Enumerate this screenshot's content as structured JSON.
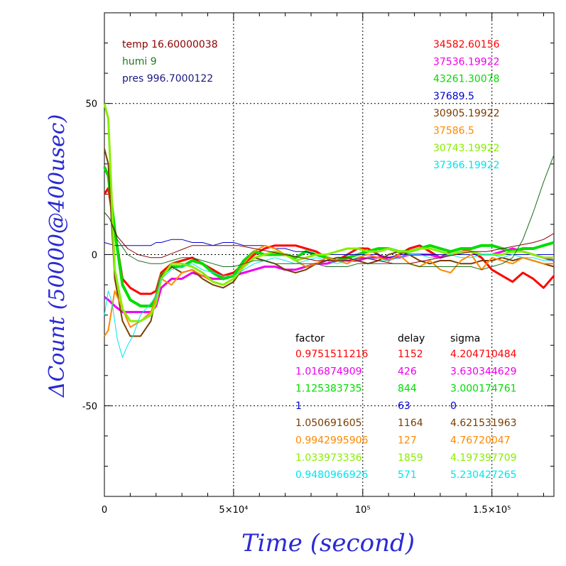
{
  "chart_data": {
    "type": "line",
    "xlabel": "Time (second)",
    "ylabel": "ΔCount (50000@400usec)",
    "xlim": [
      0,
      174000
    ],
    "ylim": [
      -80,
      80
    ],
    "grid": "dotted",
    "x_ticks": [
      {
        "value": 0,
        "label": "0"
      },
      {
        "value": 50000,
        "label": "5×10⁴"
      },
      {
        "value": 100000,
        "label": "10⁵"
      },
      {
        "value": 150000,
        "label": "1.5×10⁵"
      }
    ],
    "y_ticks": [
      {
        "value": 50,
        "label": "50"
      },
      {
        "value": 0,
        "label": "0"
      },
      {
        "value": -50,
        "label": "-50"
      }
    ],
    "env_labels": [
      {
        "text": "temp 16.60000038",
        "color": "#8b0000"
      },
      {
        "text": "humi 9",
        "color": "#1a7a1a"
      },
      {
        "text": "pres 996.7000122",
        "color": "#1a1a80"
      }
    ],
    "table_headers": [
      "factor",
      "delay",
      "sigma"
    ],
    "series": [
      {
        "mean": "34582.60156",
        "factor": "0.9751511216",
        "delay": "1152",
        "sigma": "4.204710484",
        "color": "#ff0000",
        "width": 3,
        "x": [
          0,
          1500,
          4000,
          7000,
          10000,
          14000,
          18000,
          20000,
          22000,
          26000,
          30000,
          34000,
          38000,
          42000,
          46000,
          50000,
          54000,
          58000,
          62000,
          66000,
          70000,
          74000,
          78000,
          82000,
          86000,
          90000,
          94000,
          98000,
          102000,
          106000,
          110000,
          114000,
          118000,
          122000,
          126000,
          130000,
          134000,
          138000,
          142000,
          146000,
          150000,
          154000,
          158000,
          162000,
          166000,
          170000,
          174000
        ],
        "y": [
          20,
          22,
          8,
          -8,
          -11,
          -13,
          -13,
          -12,
          -6,
          -3,
          -2,
          -1,
          -3,
          -5,
          -7,
          -6,
          -3,
          0,
          2,
          3,
          3,
          3,
          2,
          1,
          -1,
          -2,
          0,
          2,
          2,
          0,
          -2,
          0,
          2,
          3,
          1,
          -1,
          1,
          2,
          1,
          -1,
          -5,
          -7,
          -9,
          -6,
          -8,
          -11,
          -7
        ]
      },
      {
        "mean": "37536.19922",
        "factor": "1.016874909",
        "delay": "426",
        "sigma": "3.630344629",
        "color": "#ee00ee",
        "width": 3,
        "x": [
          0,
          1500,
          4000,
          7000,
          10000,
          14000,
          18000,
          20000,
          22000,
          26000,
          30000,
          34000,
          38000,
          42000,
          46000,
          50000,
          54000,
          58000,
          62000,
          66000,
          70000,
          74000,
          78000,
          82000,
          86000,
          90000,
          94000,
          98000,
          102000,
          106000,
          110000,
          114000,
          118000,
          122000,
          126000,
          130000,
          134000,
          138000,
          142000,
          146000,
          150000,
          154000,
          158000,
          162000,
          166000,
          170000,
          174000
        ],
        "y": [
          -14,
          -15,
          -17,
          -19,
          -19,
          -19,
          -19,
          -17,
          -11,
          -8,
          -8,
          -6,
          -7,
          -8,
          -8,
          -7,
          -6,
          -5,
          -4,
          -4,
          -5,
          -5,
          -4,
          -3,
          -3,
          -2,
          -2,
          -2,
          -1,
          -1,
          -1,
          -1,
          0,
          0,
          0,
          -1,
          0,
          1,
          1,
          0,
          0,
          1,
          2,
          1,
          0,
          -1,
          -2
        ]
      },
      {
        "mean": "43261.30078",
        "factor": "1.125383735",
        "delay": "844",
        "sigma": "3.000174761",
        "color": "#00dd00",
        "width": 4,
        "x": [
          0,
          1500,
          4000,
          7000,
          10000,
          14000,
          18000,
          20000,
          22000,
          26000,
          30000,
          34000,
          38000,
          42000,
          46000,
          50000,
          54000,
          58000,
          62000,
          66000,
          70000,
          74000,
          78000,
          82000,
          86000,
          90000,
          94000,
          98000,
          102000,
          106000,
          110000,
          114000,
          118000,
          122000,
          126000,
          130000,
          134000,
          138000,
          142000,
          146000,
          150000,
          154000,
          158000,
          162000,
          166000,
          170000,
          174000
        ],
        "y": [
          29,
          26,
          8,
          -10,
          -15,
          -17,
          -17,
          -14,
          -7,
          -4,
          -4,
          -2,
          -3,
          -6,
          -8,
          -7,
          -2,
          1,
          0,
          0,
          0,
          -1,
          1,
          0,
          -1,
          -2,
          -1,
          0,
          1,
          2,
          2,
          1,
          1,
          2,
          3,
          2,
          1,
          2,
          2,
          3,
          3,
          2,
          1,
          2,
          2,
          3,
          4
        ]
      },
      {
        "mean": "37689.5",
        "factor": "1",
        "delay": "63",
        "sigma": "0",
        "color": "#0000cc",
        "width": 1,
        "x": [
          0,
          4000,
          10000,
          14000,
          18000,
          20000,
          22000,
          26000,
          30000,
          34000,
          38000,
          42000,
          46000,
          50000,
          54000,
          58000,
          62000,
          66000,
          70000,
          74000,
          78000,
          82000,
          86000,
          90000,
          94000,
          98000,
          102000,
          106000,
          110000,
          114000,
          118000,
          122000,
          126000,
          130000,
          134000,
          138000,
          142000,
          146000,
          150000,
          154000,
          158000,
          162000,
          166000,
          170000,
          174000
        ],
        "y": [
          4,
          3,
          3,
          3,
          3,
          4,
          4,
          5,
          5,
          4,
          4,
          3,
          4,
          4,
          3,
          3,
          3,
          2,
          2,
          1,
          1,
          0,
          0,
          0,
          0,
          0,
          0,
          0,
          -1,
          0,
          0,
          0,
          0,
          0,
          0,
          0,
          0,
          0,
          0,
          0,
          0,
          0,
          0,
          0,
          0
        ]
      },
      {
        "mean": "30905.19922",
        "factor": "1.050691605",
        "delay": "1164",
        "sigma": "4.621531963",
        "color": "#7a3d00",
        "width": 2,
        "x": [
          0,
          1500,
          4000,
          7000,
          10000,
          14000,
          18000,
          20000,
          22000,
          26000,
          30000,
          34000,
          38000,
          42000,
          46000,
          50000,
          54000,
          58000,
          62000,
          66000,
          70000,
          74000,
          78000,
          82000,
          86000,
          90000,
          94000,
          98000,
          102000,
          106000,
          110000,
          114000,
          118000,
          122000,
          126000,
          130000,
          134000,
          138000,
          142000,
          146000,
          150000,
          154000,
          158000,
          162000,
          166000,
          170000,
          174000
        ],
        "y": [
          35,
          30,
          -8,
          -22,
          -27,
          -27,
          -22,
          -14,
          -7,
          -4,
          -6,
          -5,
          -8,
          -10,
          -11,
          -9,
          -4,
          -1,
          -2,
          -3,
          -5,
          -6,
          -5,
          -3,
          -2,
          -1,
          -1,
          -2,
          -3,
          -2,
          0,
          1,
          0,
          -2,
          -3,
          -2,
          -2,
          -3,
          -3,
          -2,
          -2,
          -1,
          -2,
          -1,
          -2,
          -3,
          -4
        ]
      },
      {
        "mean": "37586.5",
        "factor": "0.9942995906",
        "delay": "127",
        "sigma": "4.76720047",
        "color": "#ff8800",
        "width": 2,
        "x": [
          0,
          1500,
          4000,
          7000,
          10000,
          14000,
          18000,
          20000,
          22000,
          26000,
          30000,
          34000,
          38000,
          42000,
          46000,
          50000,
          54000,
          58000,
          62000,
          66000,
          70000,
          74000,
          78000,
          82000,
          86000,
          90000,
          94000,
          98000,
          102000,
          106000,
          110000,
          114000,
          118000,
          122000,
          126000,
          130000,
          134000,
          138000,
          142000,
          146000,
          150000,
          154000,
          158000,
          162000,
          166000,
          170000,
          174000
        ],
        "y": [
          -27,
          -25,
          -12,
          -18,
          -24,
          -22,
          -19,
          -14,
          -8,
          -10,
          -6,
          -5,
          -7,
          -9,
          -10,
          -8,
          -3,
          1,
          3,
          2,
          0,
          -2,
          -4,
          -3,
          -1,
          -2,
          -3,
          -1,
          0,
          -1,
          -2,
          0,
          -3,
          -4,
          -2,
          -5,
          -6,
          -2,
          0,
          -5,
          -1,
          -2,
          -3,
          -1,
          -2,
          -3,
          -3
        ]
      },
      {
        "mean": "30743.19922",
        "factor": "1.033973336",
        "delay": "1859",
        "sigma": "4.197397709",
        "color": "#88ee00",
        "width": 3,
        "x": [
          0,
          1500,
          4000,
          7000,
          10000,
          14000,
          18000,
          20000,
          22000,
          26000,
          30000,
          34000,
          38000,
          42000,
          46000,
          50000,
          54000,
          58000,
          62000,
          66000,
          70000,
          74000,
          78000,
          82000,
          86000,
          90000,
          94000,
          98000,
          102000,
          106000,
          110000,
          114000,
          118000,
          122000,
          126000,
          130000,
          134000,
          138000,
          142000,
          146000,
          150000,
          154000,
          158000,
          162000,
          166000,
          170000,
          174000
        ],
        "y": [
          50,
          45,
          -5,
          -18,
          -22,
          -22,
          -20,
          -16,
          -8,
          -3,
          -3,
          -4,
          -6,
          -9,
          -10,
          -8,
          -4,
          -1,
          0,
          1,
          0,
          -2,
          -1,
          0,
          0,
          1,
          2,
          2,
          1,
          1,
          2,
          1,
          1,
          2,
          2,
          1,
          0,
          1,
          1,
          0,
          0,
          0,
          1,
          1,
          0,
          -1,
          -1
        ]
      },
      {
        "mean": "37366.19922",
        "factor": "0.9480966926",
        "delay": "571",
        "sigma": "5.230427265",
        "color": "#00e5ee",
        "width": 1,
        "x": [
          0,
          1500,
          3000,
          5000,
          7000,
          9000,
          11000,
          14000,
          18000,
          20000,
          22000,
          26000,
          30000,
          34000,
          38000,
          42000,
          46000,
          50000,
          54000,
          58000,
          62000,
          66000,
          70000,
          74000,
          78000,
          82000,
          86000,
          90000,
          94000,
          98000,
          102000,
          106000,
          110000,
          114000,
          118000,
          122000,
          126000,
          130000,
          134000,
          138000,
          142000,
          146000,
          150000,
          154000,
          158000,
          162000,
          166000,
          170000,
          174000
        ],
        "y": [
          -20,
          -12,
          -16,
          -28,
          -34,
          -30,
          -27,
          -20,
          -16,
          -14,
          -8,
          -5,
          -4,
          -3,
          -5,
          -6,
          -7,
          -7,
          -5,
          -3,
          -2,
          -1,
          -2,
          -3,
          -2,
          -1,
          -2,
          -3,
          -2,
          -1,
          -1,
          -2,
          -2,
          -1,
          0,
          0,
          -1,
          -1,
          0,
          -1,
          -1,
          0,
          0,
          -1,
          0,
          -1,
          -1,
          -2,
          -2
        ]
      },
      {
        "name": "",
        "color": "#8b0000",
        "width": 1,
        "x": [
          0,
          2000,
          5000,
          9000,
          13000,
          18000,
          22000,
          28000,
          34000,
          40000,
          46000,
          52000,
          58000,
          64000,
          70000,
          76000,
          82000,
          88000,
          94000,
          100000,
          106000,
          112000,
          118000,
          124000,
          130000,
          136000,
          142000,
          148000,
          154000,
          160000,
          166000,
          170000,
          174000
        ],
        "y": [
          14,
          12,
          6,
          2,
          0,
          -1,
          -1,
          1,
          3,
          3,
          3,
          3,
          2,
          1,
          0,
          -1,
          -2,
          -2,
          -2,
          -1,
          -2,
          -3,
          -3,
          -2,
          -1,
          0,
          1,
          1,
          2,
          3,
          4,
          5,
          7
        ]
      },
      {
        "name": "",
        "color": "#1a6a1a",
        "width": 1,
        "x": [
          0,
          2000,
          5000,
          9000,
          13000,
          18000,
          22000,
          26000,
          30000,
          34000,
          38000,
          42000,
          46000,
          50000,
          54000,
          58000,
          62000,
          66000,
          70000,
          74000,
          78000,
          82000,
          86000,
          90000,
          94000,
          98000,
          102000,
          106000,
          110000,
          114000,
          118000,
          122000,
          126000,
          130000,
          134000,
          138000,
          142000,
          146000,
          150000,
          154000,
          158000,
          162000,
          166000,
          170000,
          174000
        ],
        "y": [
          14,
          12,
          5,
          0,
          -2,
          -3,
          -3,
          -2,
          -1,
          -1,
          -2,
          -3,
          -4,
          -4,
          -3,
          -2,
          -2,
          -3,
          -3,
          -3,
          -3,
          -3,
          -4,
          -4,
          -4,
          -3,
          -3,
          -3,
          -3,
          -3,
          -3,
          -4,
          -4,
          -4,
          -4,
          -4,
          -4,
          -5,
          -4,
          -3,
          -1,
          5,
          14,
          24,
          33
        ]
      }
    ]
  }
}
